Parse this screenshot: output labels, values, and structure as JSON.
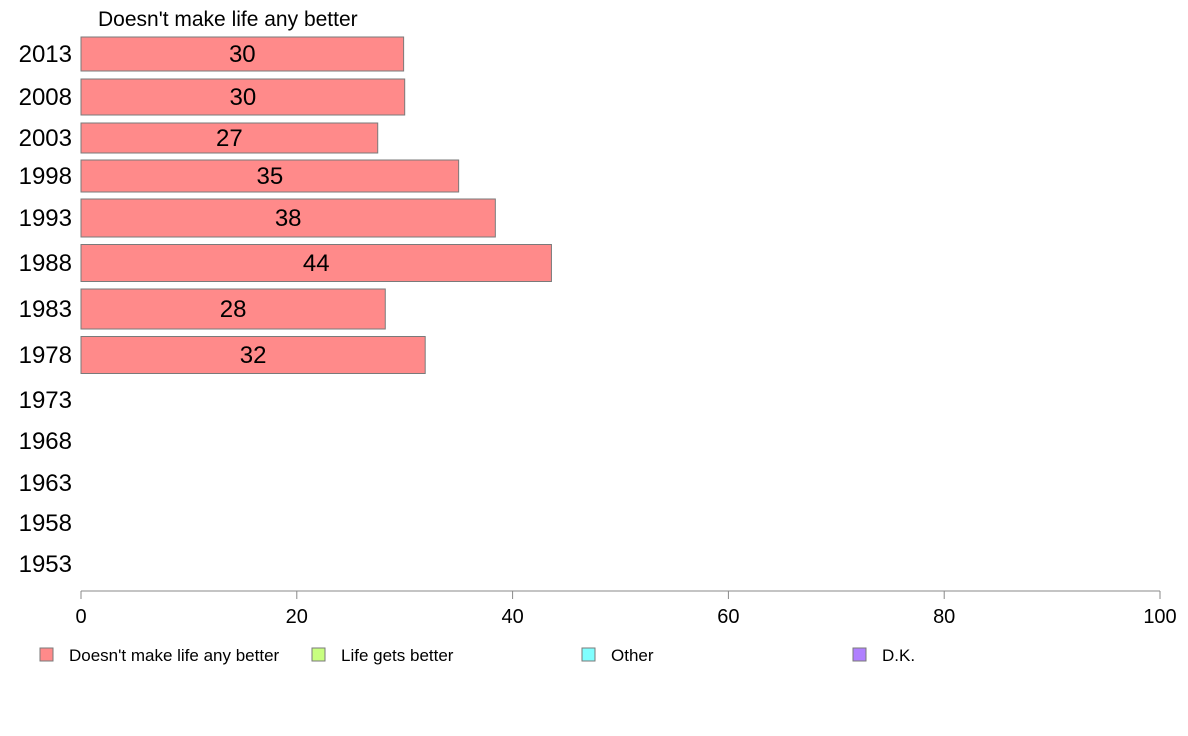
{
  "chart_data": {
    "type": "bar",
    "orientation": "horizontal",
    "title": "Doesn't make life any better",
    "categories": [
      "2013",
      "2008",
      "2003",
      "1998",
      "1993",
      "1988",
      "1983",
      "1978",
      "1973",
      "1968",
      "1963",
      "1958",
      "1953"
    ],
    "series": [
      {
        "name": "Doesn't make life any better",
        "color": "#ff8a8a",
        "values": [
          30,
          30,
          27,
          35,
          38,
          44,
          28,
          32,
          null,
          null,
          null,
          null,
          null
        ],
        "value_estimates": [
          29.9,
          30.0,
          27.5,
          35.0,
          38.4,
          43.6,
          28.2,
          31.9,
          null,
          null,
          null,
          null,
          null
        ]
      }
    ],
    "xlim": [
      0,
      100
    ],
    "xticks": [
      0,
      20,
      40,
      60,
      80,
      100
    ],
    "legend": {
      "placement": "bottom",
      "entries": [
        {
          "label": "Doesn't make life any better",
          "color": "#ff8a8a"
        },
        {
          "label": "Life gets better",
          "color": "#c8ff80"
        },
        {
          "label": "Other",
          "color": "#80ffff"
        },
        {
          "label": "D.K.",
          "color": "#b080ff"
        }
      ]
    },
    "grid": false
  }
}
